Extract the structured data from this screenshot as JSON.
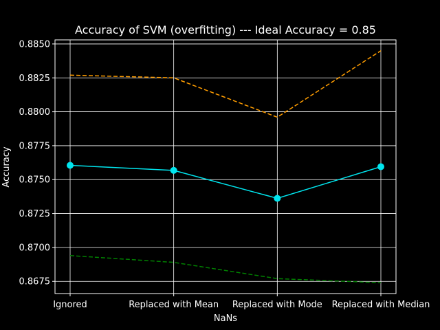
{
  "chart_data": {
    "type": "line",
    "title": "Accuracy of SVM (overfitting) --- Ideal Accuracy = 0.85",
    "xlabel": "NaNs",
    "ylabel": "Accuracy",
    "categories": [
      "Ignored",
      "Replaced with Mean",
      "Replaced with Mode",
      "Replaced with Median"
    ],
    "ylim": [
      0.8666,
      0.8853
    ],
    "yticks": [
      0.8675,
      0.87,
      0.8725,
      0.875,
      0.8775,
      0.88,
      0.8825,
      0.885
    ],
    "ytick_labels": [
      "0.8675",
      "0.8700",
      "0.8725",
      "0.8750",
      "0.8775",
      "0.8800",
      "0.8825",
      "0.8850"
    ],
    "grid": true,
    "series": [
      {
        "color": "#00e5ee",
        "style": "solid",
        "markers": true,
        "values": [
          0.87605,
          0.87568,
          0.87362,
          0.87595
        ]
      },
      {
        "color": "#ff9d00",
        "style": "dashed",
        "markers": false,
        "values": [
          0.8827,
          0.8825,
          0.8796,
          0.8845
        ]
      },
      {
        "color": "#008000",
        "style": "dashed",
        "markers": false,
        "values": [
          0.8694,
          0.8689,
          0.8677,
          0.8674
        ]
      }
    ]
  }
}
